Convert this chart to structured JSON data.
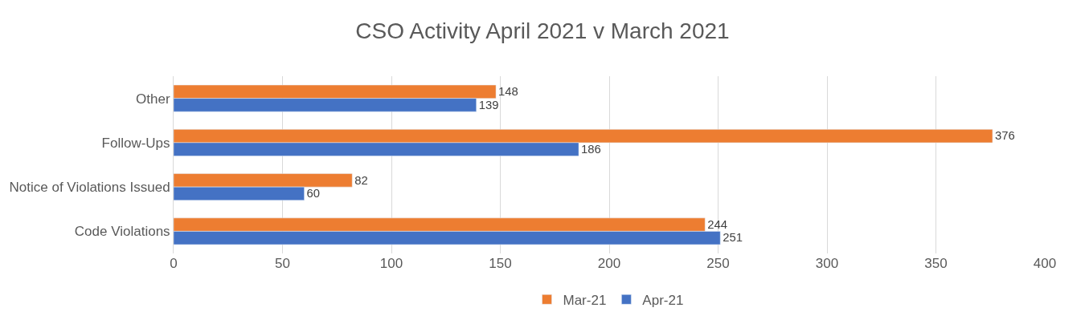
{
  "chart_data": {
    "type": "bar",
    "orientation": "horizontal",
    "title": "CSO Activity April 2021 v March 2021",
    "categories": [
      "Other",
      "Follow-Ups",
      "Notice of Violations Issued",
      "Code Violations"
    ],
    "series": [
      {
        "name": "Mar-21",
        "color": "#ed7d31",
        "values": [
          148,
          376,
          82,
          244
        ]
      },
      {
        "name": "Apr-21",
        "color": "#4472c4",
        "values": [
          139,
          186,
          60,
          251
        ]
      }
    ],
    "xlim": [
      0,
      400
    ],
    "xticks": [
      0,
      50,
      100,
      150,
      200,
      250,
      300,
      350,
      400
    ],
    "grid": "x",
    "legend": "bottom",
    "data_labels": true
  }
}
